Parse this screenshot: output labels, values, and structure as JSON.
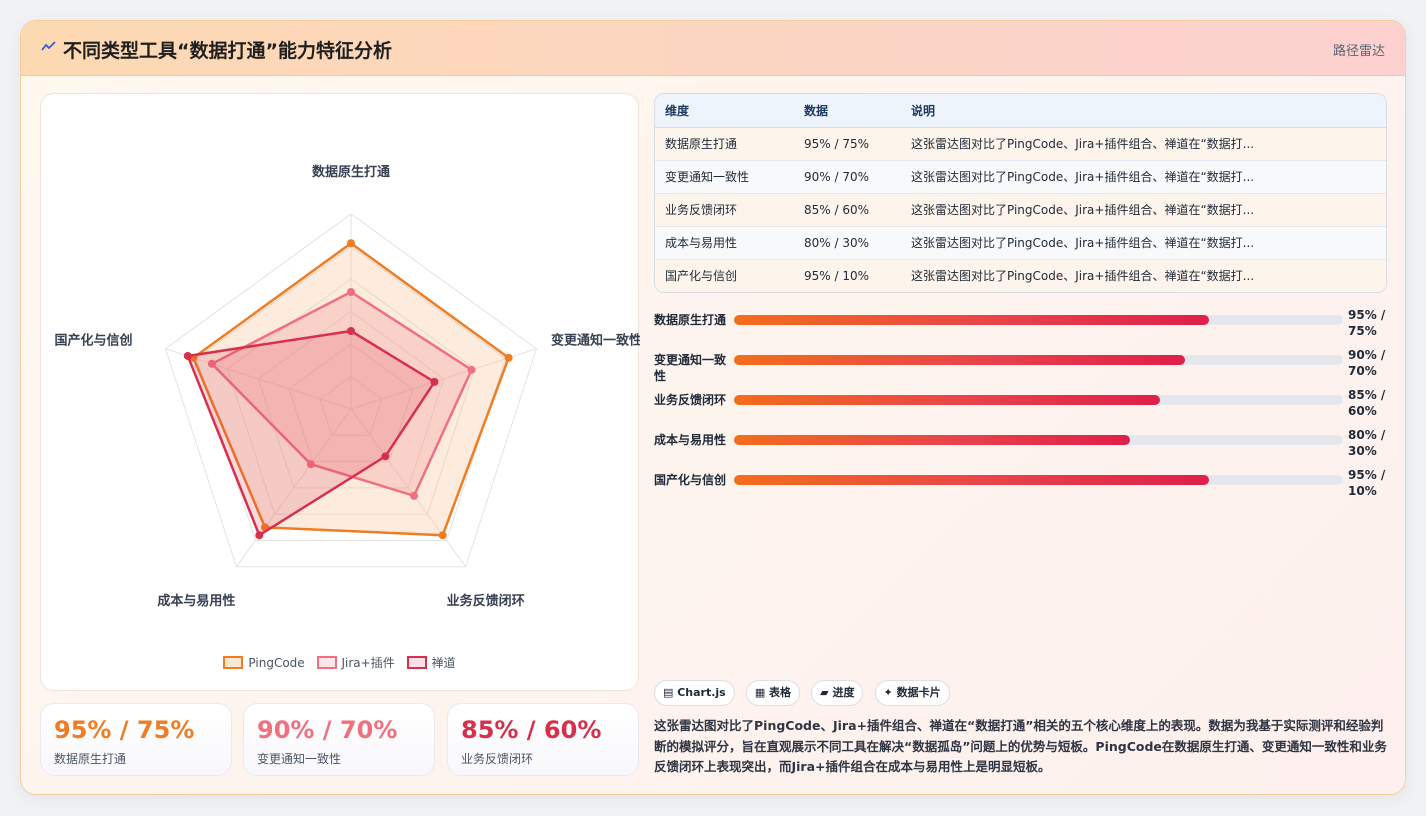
{
  "header": {
    "title": "不同类型工具“数据打通”能力特征分析",
    "tag": "路径雷达",
    "logo_icon": "chart-wave-icon"
  },
  "chart_data": {
    "type": "radar",
    "axes": [
      "数据原生打通",
      "变更通知一致性",
      "业务反馈闭环",
      "成本与易用性",
      "国产化与信创"
    ],
    "range": [
      0,
      100
    ],
    "series": [
      {
        "name": "PingCode",
        "values": [
          85,
          85,
          80,
          75,
          85
        ],
        "color": "#ee7d23",
        "fill": "rgba(247,186,135,0.28)"
      },
      {
        "name": "Jira+插件",
        "values": [
          60,
          65,
          55,
          35,
          75
        ],
        "color": "#f0707e",
        "fill": "rgba(241,112,126,0.22)"
      },
      {
        "name": "禅道",
        "values": [
          40,
          45,
          30,
          80,
          88
        ],
        "color": "#d7304c",
        "fill": "rgba(215,48,76,0.18)"
      }
    ]
  },
  "legend": [
    "PingCode",
    "Jira+插件",
    "禅道"
  ],
  "stats": [
    {
      "value": "95% / 75%",
      "label": "数据原生打通",
      "color": "#ee7d23"
    },
    {
      "value": "90% / 70%",
      "label": "变更通知一致性",
      "color": "#f0707e"
    },
    {
      "value": "85% / 60%",
      "label": "业务反馈闭环",
      "color": "#d7304c"
    }
  ],
  "table": {
    "headers": [
      "维度",
      "数据",
      "说明"
    ],
    "rows": [
      [
        "数据原生打通",
        "95% / 75%",
        "这张雷达图对比了PingCode、Jira+插件组合、禅道在“数据打..."
      ],
      [
        "变更通知一致性",
        "90% / 70%",
        "这张雷达图对比了PingCode、Jira+插件组合、禅道在“数据打..."
      ],
      [
        "业务反馈闭环",
        "85% / 60%",
        "这张雷达图对比了PingCode、Jira+插件组合、禅道在“数据打..."
      ],
      [
        "成本与易用性",
        "80% / 30%",
        "这张雷达图对比了PingCode、Jira+插件组合、禅道在“数据打..."
      ],
      [
        "国产化与信创",
        "95% / 10%",
        "这张雷达图对比了PingCode、Jira+插件组合、禅道在“数据打..."
      ]
    ]
  },
  "bars": [
    {
      "label": "数据原生打通",
      "value": "95% / 75%",
      "pct": 0.78
    },
    {
      "label": "变更通知一致性",
      "value": "90% / 70%",
      "pct": 0.74
    },
    {
      "label": "业务反馈闭环",
      "value": "85% / 60%",
      "pct": 0.7
    },
    {
      "label": "成本与易用性",
      "value": "80% / 30%",
      "pct": 0.65
    },
    {
      "label": "国产化与信创",
      "value": "95% / 10%",
      "pct": 0.78
    }
  ],
  "chips": [
    "▤ Chart.js",
    "▦ 表格",
    "▰ 进度",
    "✦ 数据卡片"
  ],
  "description": "这张雷达图对比了PingCode、Jira+插件组合、禅道在“数据打通”相关的五个核心维度上的表现。数据为我基于实际测评和经验判断的模拟评分，旨在直观展示不同工具在解决“数据孤岛”问题上的优势与短板。PingCode在数据原生打通、变更通知一致性和业务反馈闭环上表现突出，而Jira+插件组合在成本与易用性上是明显短板。"
}
